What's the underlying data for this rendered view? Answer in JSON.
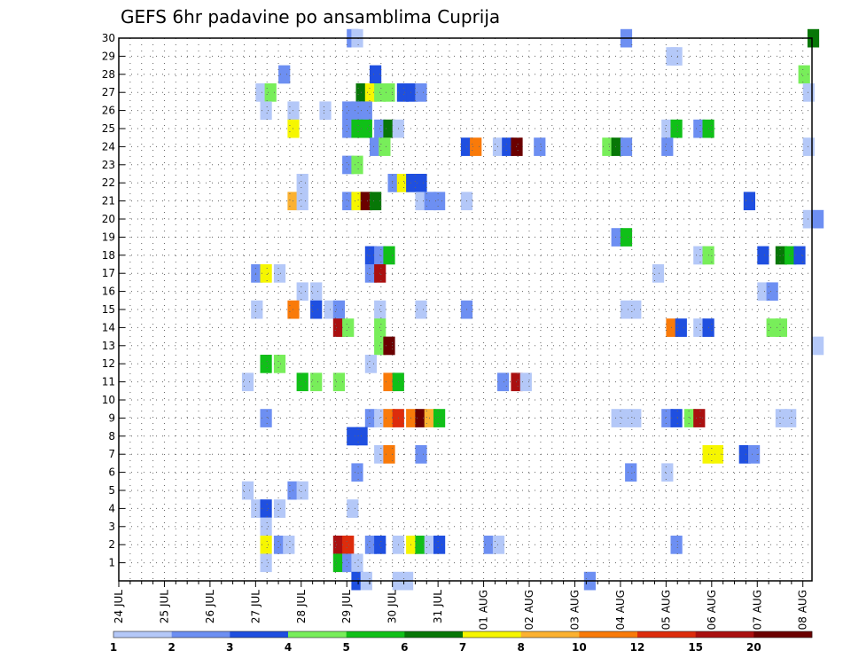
{
  "chart_data": {
    "type": "heatmap",
    "title": "GEFS 6hr padavine po ansamblima Cuprija",
    "xlabel": "",
    "ylabel": "",
    "x_tick_labels": [
      "24 JUL",
      "25 JUL",
      "26 JUL",
      "27 JUL",
      "28 JUL",
      "29 JUL",
      "30 JUL",
      "31 JUL",
      "01 AUG",
      "02 AUG",
      "03 AUG",
      "04 AUG",
      "05 AUG",
      "06 AUG",
      "07 AUG",
      "08 AUG"
    ],
    "x_range_days": [
      0,
      15.2
    ],
    "y_tick_labels": [
      "1",
      "2",
      "3",
      "4",
      "5",
      "6",
      "7",
      "8",
      "9",
      "10",
      "11",
      "12",
      "13",
      "14",
      "15",
      "16",
      "17",
      "18",
      "19",
      "20",
      "21",
      "22",
      "23",
      "24",
      "25",
      "26",
      "27",
      "28",
      "29",
      "30"
    ],
    "y_range": [
      0,
      30
    ],
    "grid": true,
    "color_scale": {
      "labels": [
        "1",
        "2",
        "3",
        "4",
        "5",
        "6",
        "7",
        "8",
        "10",
        "12",
        "15",
        "20"
      ],
      "colors": [
        "#b4c8f8",
        "#6d8ff2",
        "#1f4fe0",
        "#78ee5a",
        "#10c018",
        "#077707",
        "#f6f600",
        "#fbb131",
        "#f97a09",
        "#dd2c0c",
        "#aa1010",
        "#6b0000"
      ]
    },
    "cells_note": "each cell: [day offset from 24 JUL 00h, member, precipitation mm/6h]",
    "cells": [
      [
        5.0,
        30,
        2
      ],
      [
        5.1,
        30,
        1
      ],
      [
        11.0,
        30,
        2
      ],
      [
        15.1,
        30,
        6
      ],
      [
        12.0,
        29,
        1
      ],
      [
        12.1,
        29,
        1
      ],
      [
        3.5,
        28,
        2
      ],
      [
        5.5,
        28,
        3
      ],
      [
        14.9,
        28,
        4
      ],
      [
        3.0,
        27,
        1
      ],
      [
        3.2,
        27,
        4
      ],
      [
        5.2,
        27,
        6
      ],
      [
        5.4,
        27,
        7
      ],
      [
        5.6,
        27,
        4
      ],
      [
        5.8,
        27,
        4
      ],
      [
        6.1,
        27,
        3
      ],
      [
        6.3,
        27,
        3
      ],
      [
        6.5,
        27,
        2
      ],
      [
        15.0,
        27,
        1
      ],
      [
        3.1,
        26,
        1
      ],
      [
        3.7,
        26,
        1
      ],
      [
        4.4,
        26,
        1
      ],
      [
        4.9,
        26,
        2
      ],
      [
        5.1,
        26,
        2
      ],
      [
        5.3,
        26,
        2
      ],
      [
        3.7,
        25,
        7
      ],
      [
        4.9,
        25,
        2
      ],
      [
        5.1,
        25,
        5
      ],
      [
        5.3,
        25,
        5
      ],
      [
        5.6,
        25,
        2
      ],
      [
        5.8,
        25,
        6
      ],
      [
        6.0,
        25,
        1
      ],
      [
        11.9,
        25,
        1
      ],
      [
        12.1,
        25,
        5
      ],
      [
        12.6,
        25,
        2
      ],
      [
        12.8,
        25,
        5
      ],
      [
        5.5,
        24,
        2
      ],
      [
        5.7,
        24,
        4
      ],
      [
        7.5,
        24,
        3
      ],
      [
        7.7,
        24,
        10
      ],
      [
        8.2,
        24,
        1
      ],
      [
        8.4,
        24,
        3
      ],
      [
        8.6,
        24,
        20
      ],
      [
        9.1,
        24,
        2
      ],
      [
        10.6,
        24,
        4
      ],
      [
        10.8,
        24,
        6
      ],
      [
        11.0,
        24,
        2
      ],
      [
        11.9,
        24,
        2
      ],
      [
        15.0,
        24,
        1
      ],
      [
        4.9,
        23,
        2
      ],
      [
        5.1,
        23,
        4
      ],
      [
        3.9,
        22,
        1
      ],
      [
        5.9,
        22,
        2
      ],
      [
        6.1,
        22,
        7
      ],
      [
        6.3,
        22,
        3
      ],
      [
        6.5,
        22,
        3
      ],
      [
        3.7,
        21,
        8
      ],
      [
        3.9,
        21,
        1
      ],
      [
        4.9,
        21,
        2
      ],
      [
        5.1,
        21,
        7
      ],
      [
        5.3,
        21,
        20
      ],
      [
        5.5,
        21,
        6
      ],
      [
        6.5,
        21,
        1
      ],
      [
        6.7,
        21,
        2
      ],
      [
        6.9,
        21,
        2
      ],
      [
        7.5,
        21,
        1
      ],
      [
        13.7,
        21,
        3
      ],
      [
        15.0,
        20,
        1
      ],
      [
        15.2,
        20,
        2
      ],
      [
        10.8,
        19,
        2
      ],
      [
        11.0,
        19,
        5
      ],
      [
        5.4,
        18,
        3
      ],
      [
        5.6,
        18,
        2
      ],
      [
        5.8,
        18,
        5
      ],
      [
        12.6,
        18,
        1
      ],
      [
        12.8,
        18,
        4
      ],
      [
        14.0,
        18,
        3
      ],
      [
        14.4,
        18,
        6
      ],
      [
        14.6,
        18,
        5
      ],
      [
        14.8,
        18,
        3
      ],
      [
        2.9,
        17,
        2
      ],
      [
        3.1,
        17,
        7
      ],
      [
        3.4,
        17,
        1
      ],
      [
        5.4,
        17,
        2
      ],
      [
        5.6,
        17,
        15
      ],
      [
        11.7,
        17,
        1
      ],
      [
        3.9,
        16,
        1
      ],
      [
        4.2,
        16,
        1
      ],
      [
        14.0,
        16,
        1
      ],
      [
        14.2,
        16,
        2
      ],
      [
        2.9,
        15,
        1
      ],
      [
        3.7,
        15,
        10
      ],
      [
        4.2,
        15,
        3
      ],
      [
        4.5,
        15,
        1
      ],
      [
        4.7,
        15,
        2
      ],
      [
        5.6,
        15,
        1
      ],
      [
        6.5,
        15,
        1
      ],
      [
        7.5,
        15,
        2
      ],
      [
        11.0,
        15,
        1
      ],
      [
        11.2,
        15,
        1
      ],
      [
        4.7,
        14,
        15
      ],
      [
        4.9,
        14,
        4
      ],
      [
        5.6,
        14,
        4
      ],
      [
        12.0,
        14,
        10
      ],
      [
        12.2,
        14,
        3
      ],
      [
        12.6,
        14,
        1
      ],
      [
        12.8,
        14,
        3
      ],
      [
        14.2,
        14,
        4
      ],
      [
        14.4,
        14,
        4
      ],
      [
        5.6,
        13,
        4
      ],
      [
        5.8,
        13,
        20
      ],
      [
        15.2,
        13,
        1
      ],
      [
        3.1,
        12,
        5
      ],
      [
        3.4,
        12,
        4
      ],
      [
        5.4,
        12,
        1
      ],
      [
        2.7,
        11,
        1
      ],
      [
        3.9,
        11,
        5
      ],
      [
        4.2,
        11,
        4
      ],
      [
        4.7,
        11,
        4
      ],
      [
        5.8,
        11,
        10
      ],
      [
        6.0,
        11,
        5
      ],
      [
        8.3,
        11,
        2
      ],
      [
        8.6,
        11,
        15
      ],
      [
        8.8,
        11,
        1
      ],
      [
        3.1,
        9,
        2
      ],
      [
        5.4,
        9,
        2
      ],
      [
        5.6,
        9,
        1
      ],
      [
        5.8,
        9,
        10
      ],
      [
        6.0,
        9,
        12
      ],
      [
        6.3,
        9,
        10
      ],
      [
        6.5,
        9,
        20
      ],
      [
        6.7,
        9,
        8
      ],
      [
        6.9,
        9,
        5
      ],
      [
        10.8,
        9,
        1
      ],
      [
        11.0,
        9,
        1
      ],
      [
        11.2,
        9,
        1
      ],
      [
        11.9,
        9,
        2
      ],
      [
        12.1,
        9,
        3
      ],
      [
        12.4,
        9,
        4
      ],
      [
        12.6,
        9,
        15
      ],
      [
        14.4,
        9,
        1
      ],
      [
        14.6,
        9,
        1
      ],
      [
        5.0,
        8,
        3
      ],
      [
        5.2,
        8,
        3
      ],
      [
        5.6,
        7,
        1
      ],
      [
        5.8,
        7,
        10
      ],
      [
        6.5,
        7,
        2
      ],
      [
        12.8,
        7,
        7
      ],
      [
        13.0,
        7,
        7
      ],
      [
        13.6,
        7,
        3
      ],
      [
        13.8,
        7,
        2
      ],
      [
        5.1,
        6,
        2
      ],
      [
        11.1,
        6,
        2
      ],
      [
        11.9,
        6,
        1
      ],
      [
        2.7,
        5,
        1
      ],
      [
        3.7,
        5,
        2
      ],
      [
        3.9,
        5,
        1
      ],
      [
        2.9,
        4,
        1
      ],
      [
        3.1,
        4,
        3
      ],
      [
        3.4,
        4,
        1
      ],
      [
        5.0,
        4,
        1
      ],
      [
        3.1,
        3,
        1
      ],
      [
        3.1,
        2,
        7
      ],
      [
        3.4,
        2,
        2
      ],
      [
        3.6,
        2,
        1
      ],
      [
        4.7,
        2,
        15
      ],
      [
        4.9,
        2,
        12
      ],
      [
        5.4,
        2,
        2
      ],
      [
        5.6,
        2,
        3
      ],
      [
        6.0,
        2,
        1
      ],
      [
        6.3,
        2,
        7
      ],
      [
        6.5,
        2,
        5
      ],
      [
        6.7,
        2,
        1
      ],
      [
        6.9,
        2,
        3
      ],
      [
        8.0,
        2,
        2
      ],
      [
        8.2,
        2,
        1
      ],
      [
        12.1,
        2,
        2
      ],
      [
        3.1,
        1,
        1
      ],
      [
        4.7,
        1,
        5
      ],
      [
        4.9,
        1,
        2
      ],
      [
        5.1,
        1,
        1
      ],
      [
        5.1,
        0,
        3
      ],
      [
        5.3,
        0,
        1
      ],
      [
        6.0,
        0,
        1
      ],
      [
        6.2,
        0,
        1
      ],
      [
        10.2,
        0,
        2
      ]
    ]
  }
}
